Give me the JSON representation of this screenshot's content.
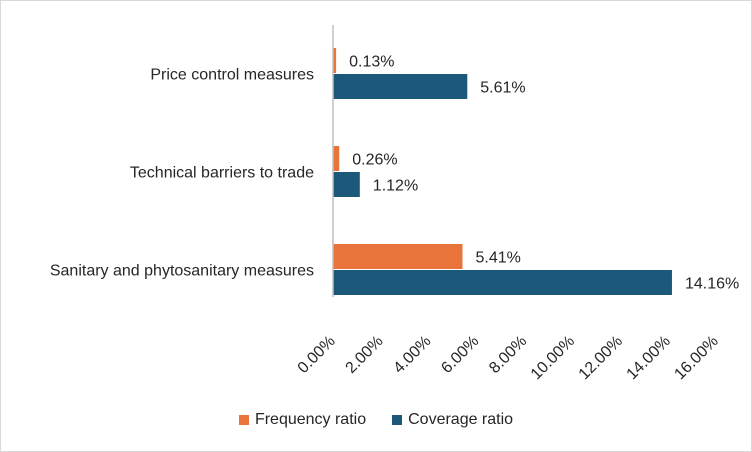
{
  "chart_data": {
    "type": "bar",
    "orientation": "horizontal",
    "categories": [
      "Price control measures",
      "Technical barriers to trade",
      "Sanitary and phytosanitary measures"
    ],
    "series": [
      {
        "name": "Frequency ratio",
        "values": [
          0.13,
          0.26,
          5.41
        ],
        "labels": [
          "0.13%",
          "0.26%",
          "5.41%"
        ],
        "color": "#E8743B"
      },
      {
        "name": "Coverage ratio",
        "values": [
          5.61,
          1.12,
          14.16
        ],
        "labels": [
          "5.61%",
          "1.12%",
          "14.16%"
        ],
        "color": "#1B5879"
      }
    ],
    "xlim": [
      0,
      16
    ],
    "x_ticks": [
      0,
      2,
      4,
      6,
      8,
      10,
      12,
      14,
      16
    ],
    "x_tick_labels": [
      "0.00%",
      "2.00%",
      "4.00%",
      "6.00%",
      "8.00%",
      "10.00%",
      "12.00%",
      "14.00%",
      "16.00%"
    ],
    "legend_position": "bottom",
    "grid": false
  }
}
